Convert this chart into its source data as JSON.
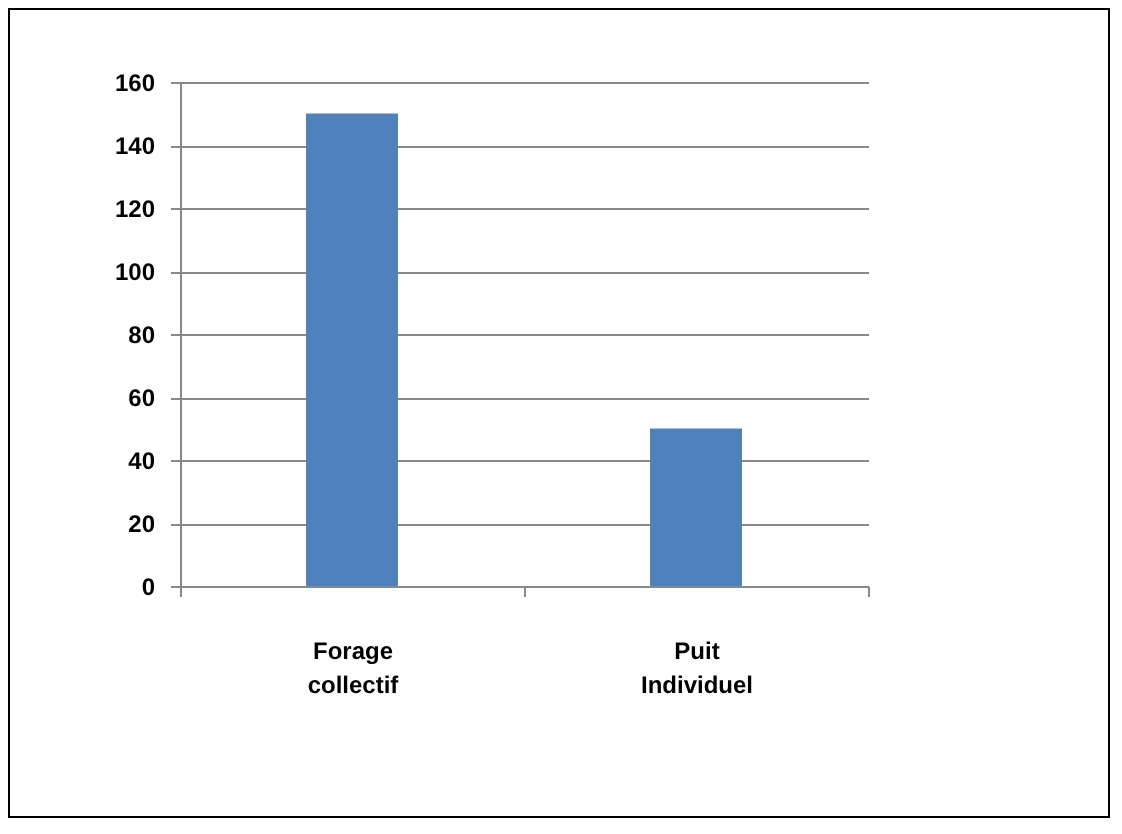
{
  "chart_data": {
    "type": "bar",
    "categories": [
      "Forage collectif",
      "Puit Individuel"
    ],
    "values": [
      150,
      50
    ],
    "color": "#4f81bd",
    "ylim": [
      0,
      160
    ],
    "yticks": [
      0,
      20,
      40,
      60,
      80,
      100,
      120,
      140,
      160
    ],
    "grid": "y"
  }
}
